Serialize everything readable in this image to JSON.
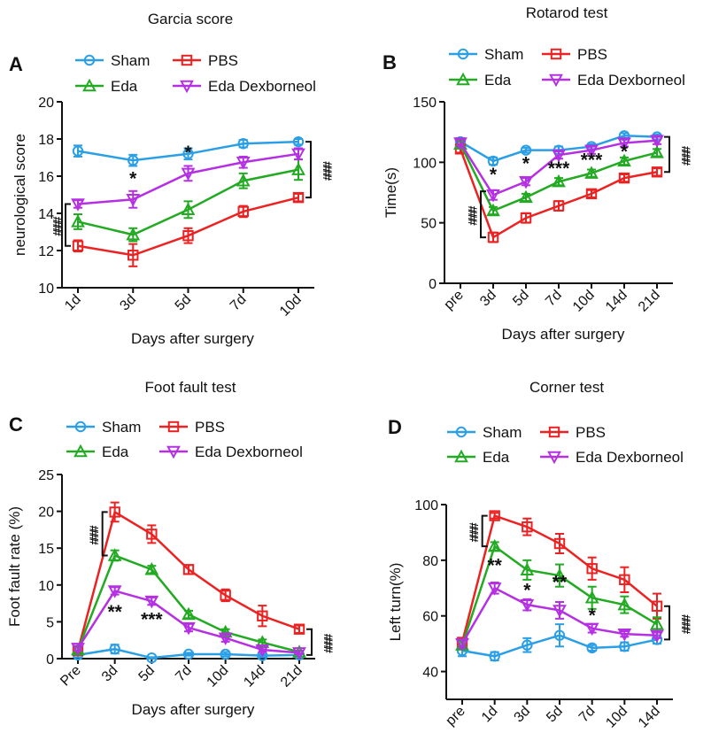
{
  "colors": {
    "sham": "#2b9fe6",
    "pbs": "#ec2222",
    "eda": "#22aa22",
    "edadex": "#b52fe3"
  },
  "common": {
    "xlabel": "Days after surgery"
  },
  "legend_labels": {
    "sham": "Sham",
    "pbs": "PBS",
    "eda": "Eda",
    "edadex": "Eda Dexborneol"
  },
  "chart_data": [
    {
      "id": "A",
      "panel_label": "A",
      "type": "line",
      "title": "Garcia score",
      "xlabel": "Days after surgery",
      "ylabel": "neurological score",
      "categories": [
        "1d",
        "3d",
        "5d",
        "7d",
        "10d"
      ],
      "ylim": [
        10,
        20
      ],
      "yticks": [
        10,
        12,
        14,
        16,
        18,
        20
      ],
      "series": [
        {
          "key": "sham",
          "name": "Sham",
          "marker": "circle",
          "values": [
            17.35,
            16.85,
            17.2,
            17.75,
            17.85
          ],
          "errors": [
            0.3,
            0.3,
            0.3,
            0.2,
            0.15
          ]
        },
        {
          "key": "pbs",
          "name": "PBS",
          "marker": "square",
          "values": [
            12.25,
            11.75,
            12.8,
            14.1,
            14.85
          ],
          "errors": [
            0.3,
            0.6,
            0.4,
            0.3,
            0.2
          ]
        },
        {
          "key": "eda",
          "name": "Eda",
          "marker": "triangle",
          "values": [
            13.55,
            12.85,
            14.2,
            15.75,
            16.35
          ],
          "errors": [
            0.4,
            0.35,
            0.45,
            0.4,
            0.55
          ]
        },
        {
          "key": "edadex",
          "name": "Eda Dexborneol",
          "marker": "triangle-down",
          "values": [
            14.5,
            14.75,
            16.15,
            16.75,
            17.2
          ],
          "errors": [
            0.2,
            0.45,
            0.4,
            0.3,
            0.3
          ]
        }
      ],
      "annotations": [
        {
          "text": "*",
          "x": "3d",
          "y": 15.55
        },
        {
          "text": "*",
          "x": "5d",
          "y": 16.95
        }
      ],
      "brackets": [
        {
          "text": "####",
          "side": "left",
          "category": "1d",
          "y_range": [
            12.25,
            14.5
          ]
        },
        {
          "text": "####",
          "side": "right",
          "category": "10d",
          "y_range": [
            14.85,
            17.85
          ]
        }
      ]
    },
    {
      "id": "B",
      "panel_label": "B",
      "type": "line",
      "title": "Rotarod test",
      "xlabel": "Days after surgery",
      "ylabel": "Time(s)",
      "categories": [
        "pre",
        "3d",
        "5d",
        "7d",
        "10d",
        "14d",
        "21d"
      ],
      "ylim": [
        0,
        150
      ],
      "yticks": [
        0,
        50,
        100,
        150
      ],
      "series": [
        {
          "key": "sham",
          "name": "Sham",
          "marker": "circle",
          "values": [
            117,
            101,
            110,
            110,
            113,
            122,
            121
          ],
          "errors": [
            3,
            3,
            2,
            3,
            2,
            2,
            2
          ]
        },
        {
          "key": "pbs",
          "name": "PBS",
          "marker": "square",
          "values": [
            111,
            38,
            54,
            64,
            74,
            87,
            92
          ],
          "errors": [
            3,
            4,
            4,
            4,
            3,
            3,
            3
          ]
        },
        {
          "key": "eda",
          "name": "Eda",
          "marker": "triangle",
          "values": [
            115,
            60,
            71,
            84,
            91,
            101,
            108
          ],
          "errors": [
            3,
            3,
            3,
            3,
            3,
            3,
            3
          ]
        },
        {
          "key": "edadex",
          "name": "Eda Dexborneol",
          "marker": "triangle-down",
          "values": [
            116,
            73,
            84,
            106,
            110,
            116,
            118
          ],
          "errors": [
            3,
            4,
            3,
            3,
            3,
            3,
            3
          ]
        }
      ],
      "annotations": [
        {
          "text": "*",
          "x": "3d",
          "y": 85
        },
        {
          "text": "*",
          "x": "5d",
          "y": 94
        },
        {
          "text": "***",
          "x": "7d",
          "y": 90
        },
        {
          "text": "***",
          "x": "10d",
          "y": 97
        },
        {
          "text": "*",
          "x": "14d",
          "y": 104
        }
      ],
      "brackets": [
        {
          "text": "####",
          "side": "left",
          "category": "3d",
          "y_range": [
            38,
            76
          ]
        },
        {
          "text": "####",
          "side": "right",
          "category": "21d",
          "y_range": [
            92,
            121
          ]
        }
      ]
    },
    {
      "id": "C",
      "panel_label": "C",
      "type": "line",
      "title": "Foot fault test",
      "xlabel": "Days after surgery",
      "ylabel": "Foot fault rate (%)",
      "categories": [
        "Pre",
        "3d",
        "5d",
        "7d",
        "10d",
        "14d",
        "21d"
      ],
      "ylim": [
        0,
        25
      ],
      "yticks": [
        0,
        5,
        10,
        15,
        20,
        25
      ],
      "series": [
        {
          "key": "sham",
          "name": "Sham",
          "marker": "circle",
          "values": [
            0.5,
            1.3,
            0.1,
            0.6,
            0.6,
            0.4,
            0.5
          ],
          "errors": [
            0.3,
            0.6,
            0.1,
            0.2,
            0.3,
            0.2,
            0.2
          ]
        },
        {
          "key": "pbs",
          "name": "PBS",
          "marker": "square",
          "values": [
            1.1,
            19.9,
            16.9,
            12.1,
            8.6,
            5.8,
            4.0
          ],
          "errors": [
            0.4,
            1.3,
            1.2,
            0.6,
            0.8,
            1.4,
            0.5
          ]
        },
        {
          "key": "eda",
          "name": "Eda",
          "marker": "triangle",
          "values": [
            1.2,
            14.0,
            12.1,
            6.0,
            3.6,
            2.2,
            0.9
          ],
          "errors": [
            0.3,
            0.7,
            0.5,
            0.5,
            0.4,
            0.4,
            0.2
          ]
        },
        {
          "key": "edadex",
          "name": "Eda Dexborneol",
          "marker": "triangle-down",
          "values": [
            1.4,
            9.2,
            7.8,
            4.2,
            2.8,
            1.2,
            0.8
          ],
          "errors": [
            0.3,
            0.5,
            0.5,
            0.5,
            0.5,
            0.3,
            0.2
          ]
        }
      ],
      "annotations": [
        {
          "text": "**",
          "x": "3d",
          "y": 5.5
        },
        {
          "text": "***",
          "x": "5d",
          "y": 4.5
        }
      ],
      "brackets": [
        {
          "text": "####",
          "side": "left",
          "category": "3d",
          "y_range": [
            14.0,
            19.9
          ]
        },
        {
          "text": "####",
          "side": "right",
          "category": "21d",
          "y_range": [
            0.5,
            4.0
          ]
        }
      ]
    },
    {
      "id": "D",
      "panel_label": "D",
      "type": "line",
      "title": "Corner test",
      "xlabel": "Days after surgery",
      "ylabel": "Left turn(%)",
      "categories": [
        "pre",
        "1d",
        "3d",
        "5d",
        "7d",
        "10d",
        "14d"
      ],
      "ylim": [
        40,
        100
      ],
      "ymin_axis": 30,
      "yticks": [
        40,
        60,
        80,
        100
      ],
      "series": [
        {
          "key": "sham",
          "name": "Sham",
          "marker": "circle",
          "values": [
            47.5,
            45.5,
            49.5,
            53,
            48.5,
            49,
            51.5
          ],
          "errors": [
            2,
            1.5,
            2.5,
            4,
            1,
            1.5,
            1.5
          ]
        },
        {
          "key": "pbs",
          "name": "PBS",
          "marker": "square",
          "values": [
            50.5,
            96,
            92,
            86,
            77,
            73,
            63.5
          ],
          "errors": [
            1.5,
            1,
            3,
            3.5,
            4,
            4.5,
            4.5
          ]
        },
        {
          "key": "eda",
          "name": "Eda",
          "marker": "triangle",
          "values": [
            49.5,
            85,
            76.5,
            74.5,
            66.5,
            64,
            57
          ],
          "errors": [
            1.5,
            1.5,
            3.5,
            4,
            4,
            3,
            2.5
          ]
        },
        {
          "key": "edadex",
          "name": "Eda Dexborneol",
          "marker": "triangle-down",
          "values": [
            50,
            70,
            64,
            62,
            55.5,
            53.5,
            53
          ],
          "errors": [
            1.5,
            2,
            2,
            3,
            1.5,
            1,
            1
          ]
        }
      ],
      "annotations": [
        {
          "text": "**",
          "x": "1d",
          "y": 76
        },
        {
          "text": "*",
          "x": "3d",
          "y": 67
        },
        {
          "text": "**",
          "x": "5d",
          "y": 70
        },
        {
          "text": "*",
          "x": "7d",
          "y": 58
        }
      ],
      "brackets": [
        {
          "text": "####",
          "side": "left",
          "category": "1d",
          "y_range": [
            85,
            96
          ]
        },
        {
          "text": "####",
          "side": "right",
          "category": "14d",
          "y_range": [
            51.5,
            63.5
          ]
        }
      ]
    }
  ]
}
